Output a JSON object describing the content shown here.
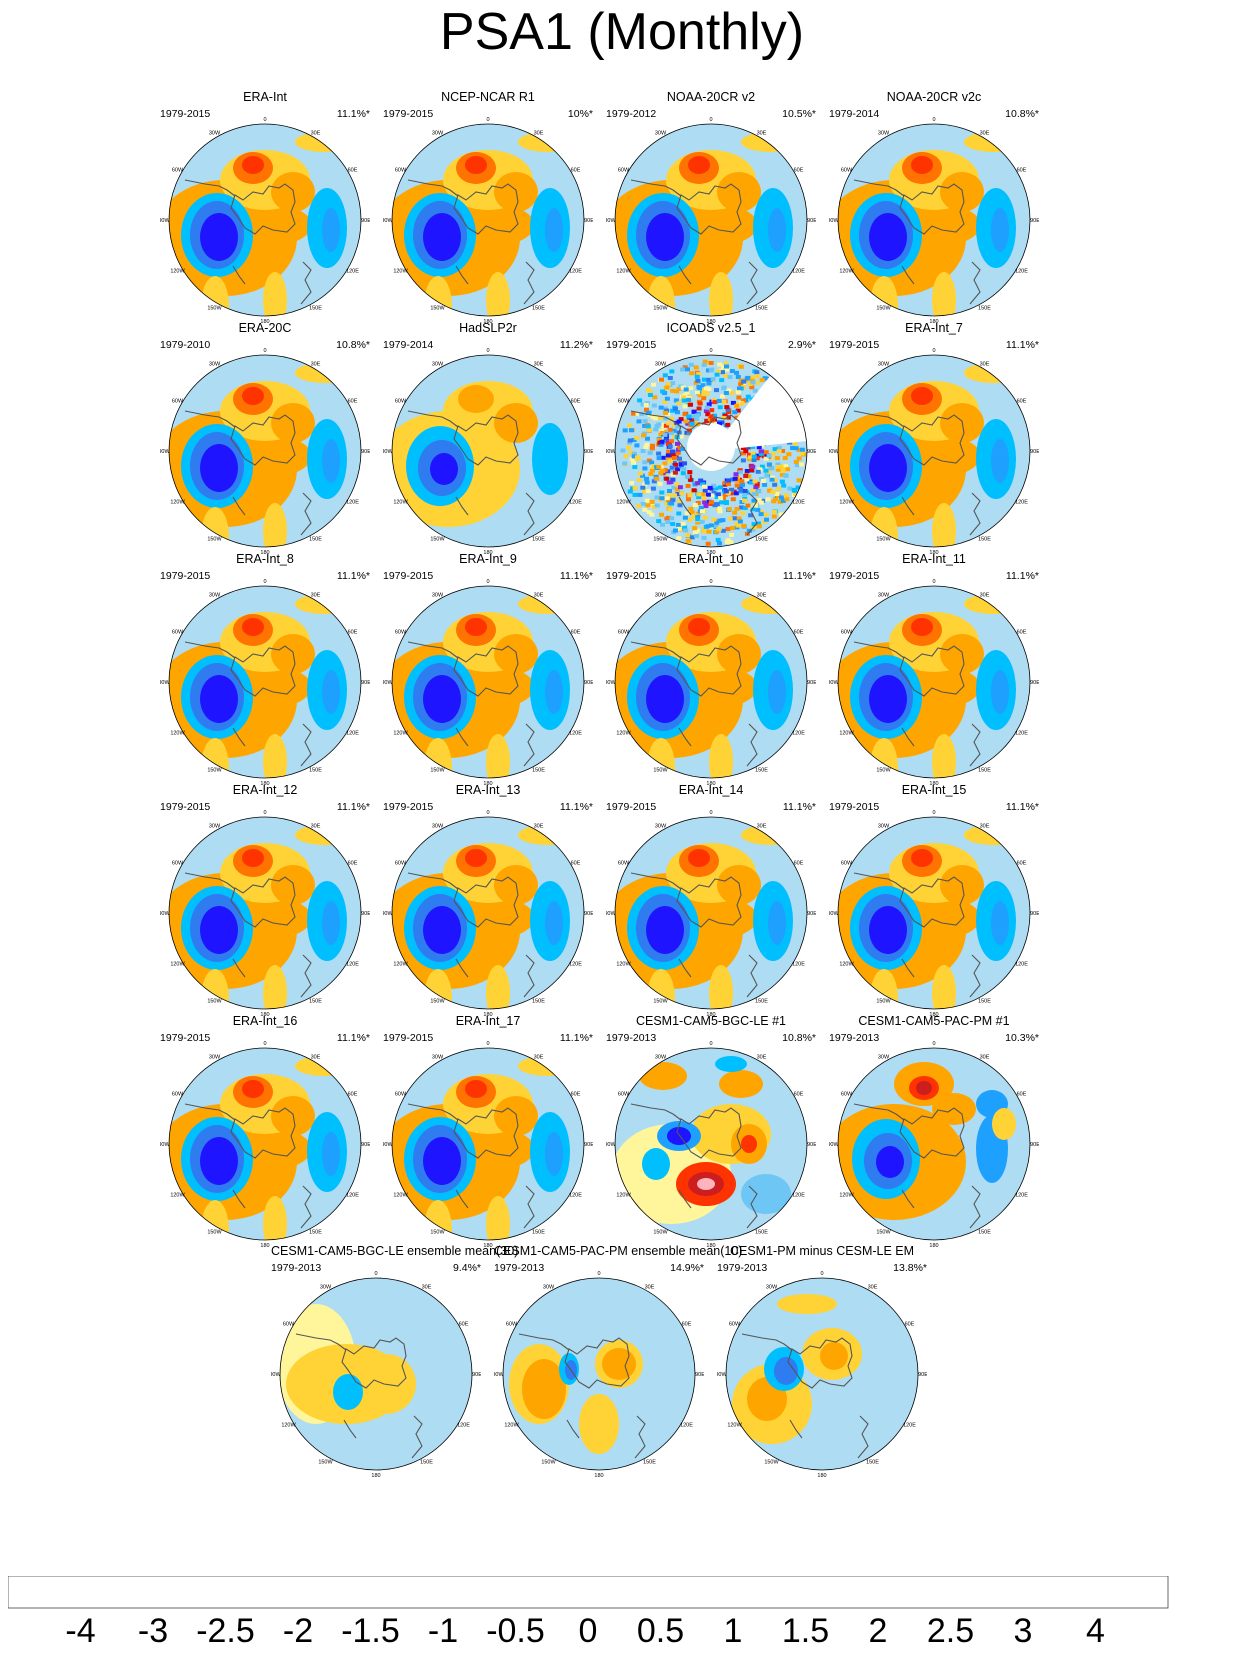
{
  "figure": {
    "title": "PSA1 (Monthly)"
  },
  "chart_data": {
    "type": "heatmap",
    "title": "PSA1 (Monthly)",
    "projection": "south polar stereographic",
    "longitude_labels": [
      "0",
      "30E",
      "60E",
      "90E",
      "120E",
      "150E",
      "180",
      "150W",
      "120W",
      "90W",
      "60W",
      "30W"
    ],
    "panels": [
      {
        "title": "ERA-Int",
        "years": "1979-2015",
        "variance": "11.1%*",
        "pattern": "psa"
      },
      {
        "title": "NCEP-NCAR R1",
        "years": "1979-2015",
        "variance": "10%*",
        "pattern": "psa"
      },
      {
        "title": "NOAA-20CR v2",
        "years": "1979-2012",
        "variance": "10.5%*",
        "pattern": "psa"
      },
      {
        "title": "NOAA-20CR v2c",
        "years": "1979-2014",
        "variance": "10.8%*",
        "pattern": "psa"
      },
      {
        "title": "ERA-20C",
        "years": "1979-2010",
        "variance": "10.8%*",
        "pattern": "psa"
      },
      {
        "title": "HadSLP2r",
        "years": "1979-2014",
        "variance": "11.2%*",
        "pattern": "psa_weak"
      },
      {
        "title": "ICOADS v2.5_1",
        "years": "1979-2015",
        "variance": "2.9%*",
        "pattern": "noisy"
      },
      {
        "title": "ERA-Int_7",
        "years": "1979-2015",
        "variance": "11.1%*",
        "pattern": "psa"
      },
      {
        "title": "ERA-Int_8",
        "years": "1979-2015",
        "variance": "11.1%*",
        "pattern": "psa"
      },
      {
        "title": "ERA-Int_9",
        "years": "1979-2015",
        "variance": "11.1%*",
        "pattern": "psa"
      },
      {
        "title": "ERA-Int_10",
        "years": "1979-2015",
        "variance": "11.1%*",
        "pattern": "psa"
      },
      {
        "title": "ERA-Int_11",
        "years": "1979-2015",
        "variance": "11.1%*",
        "pattern": "psa"
      },
      {
        "title": "ERA-Int_12",
        "years": "1979-2015",
        "variance": "11.1%*",
        "pattern": "psa"
      },
      {
        "title": "ERA-Int_13",
        "years": "1979-2015",
        "variance": "11.1%*",
        "pattern": "psa"
      },
      {
        "title": "ERA-Int_14",
        "years": "1979-2015",
        "variance": "11.1%*",
        "pattern": "psa"
      },
      {
        "title": "ERA-Int_15",
        "years": "1979-2015",
        "variance": "11.1%*",
        "pattern": "psa"
      },
      {
        "title": "ERA-Int_16",
        "years": "1979-2015",
        "variance": "11.1%*",
        "pattern": "psa"
      },
      {
        "title": "ERA-Int_17",
        "years": "1979-2015",
        "variance": "11.1%*",
        "pattern": "psa"
      },
      {
        "title": "CESM1-CAM5-BGC-LE #1",
        "years": "1979-2013",
        "variance": "10.8%*",
        "pattern": "bgc1"
      },
      {
        "title": "CESM1-CAM5-PAC-PM #1",
        "years": "1979-2013",
        "variance": "10.3%*",
        "pattern": "pac1"
      },
      {
        "title": "CESM1-CAM5-BGC-LE ensemble mean(30)",
        "years": "1979-2013",
        "variance": "9.4%*",
        "pattern": "em_le"
      },
      {
        "title": "CESM1-CAM5-PAC-PM ensemble mean(10)",
        "years": "1979-2013",
        "variance": "14.9%*",
        "pattern": "em_pm"
      },
      {
        "title": "CESM1-PM minus CESM-LE EM",
        "years": "1979-2013",
        "variance": "13.8%*",
        "pattern": "diff"
      }
    ],
    "colorbar": {
      "colors": [
        "#8a2be2",
        "#1e14ff",
        "#2850ee",
        "#2f7cf0",
        "#1ea0ff",
        "#00bfff",
        "#6ec6f5",
        "#aedcf3",
        "#fff59a",
        "#ffd335",
        "#ffa500",
        "#ff7300",
        "#ff3300",
        "#e00000",
        "#cc1e1e",
        "#ffb3bd"
      ],
      "labels": [
        "-4",
        "-3",
        "-2.5",
        "-2",
        "-1.5",
        "-1",
        "-0.5",
        "0",
        "0.5",
        "1",
        "1.5",
        "2",
        "2.5",
        "3",
        "4"
      ]
    }
  }
}
